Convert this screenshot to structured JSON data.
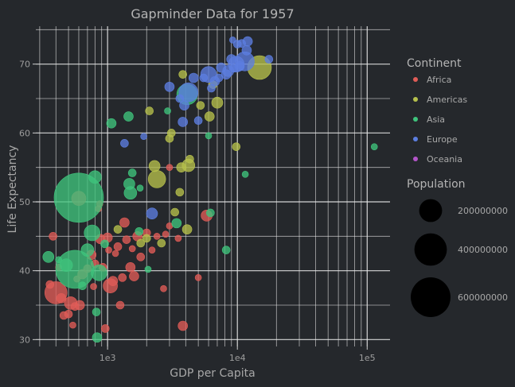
{
  "chart_data": {
    "type": "scatter",
    "title": "Gapminder Data for 1957",
    "xlabel": "GDP per Capita",
    "ylabel": "Life Expectancy",
    "x_scale": "log",
    "xlim": [
      280,
      150000
    ],
    "ylim": [
      29,
      75.5
    ],
    "x_ticks": [
      {
        "value": 1000,
        "label": "1e3"
      },
      {
        "value": 10000,
        "label": "1e4"
      },
      {
        "value": 100000,
        "label": "1e5"
      }
    ],
    "y_ticks": [
      30,
      40,
      50,
      60,
      70
    ],
    "grid": true,
    "legend_position": "right",
    "legend_title": "Continent",
    "size_legend_title": "Population",
    "size_legend": [
      {
        "value": 200000000,
        "label": "200000000"
      },
      {
        "value": 400000000,
        "label": "400000000"
      },
      {
        "value": 600000000,
        "label": "600000000"
      }
    ],
    "colors": {
      "Africa": "#e05c57",
      "Americas": "#b6c04c",
      "Asia": "#3fc47c",
      "Europe": "#5c7ee0",
      "Oceania": "#b355c9"
    },
    "series": [
      {
        "name": "Africa",
        "color": "#e05c57",
        "points": [
          [
            380,
            45.0,
            5
          ],
          [
            420,
            40.5,
            4
          ],
          [
            360,
            38.0,
            5
          ],
          [
            400,
            36.8,
            14
          ],
          [
            440,
            36.0,
            6
          ],
          [
            460,
            33.5,
            5
          ],
          [
            500,
            33.7,
            5
          ],
          [
            520,
            35.3,
            8
          ],
          [
            540,
            32.1,
            4
          ],
          [
            560,
            34.8,
            5
          ],
          [
            610,
            35.0,
            6
          ],
          [
            580,
            38.8,
            4
          ],
          [
            600,
            50.5,
            9
          ],
          [
            640,
            39.5,
            6
          ],
          [
            700,
            40.3,
            5
          ],
          [
            750,
            42.3,
            6
          ],
          [
            780,
            37.7,
            4
          ],
          [
            800,
            41.0,
            5
          ],
          [
            850,
            49.0,
            4
          ],
          [
            870,
            49.7,
            4
          ],
          [
            880,
            44.6,
            6
          ],
          [
            920,
            40.5,
            5
          ],
          [
            960,
            31.6,
            5
          ],
          [
            1000,
            44.8,
            6
          ],
          [
            1020,
            43.0,
            4
          ],
          [
            1050,
            37.8,
            9
          ],
          [
            1100,
            38.5,
            6
          ],
          [
            1150,
            42.5,
            4
          ],
          [
            1200,
            43.5,
            5
          ],
          [
            1250,
            35.0,
            5
          ],
          [
            1300,
            39.0,
            5
          ],
          [
            1350,
            47.0,
            6
          ],
          [
            1400,
            44.5,
            5
          ],
          [
            1500,
            40.5,
            6
          ],
          [
            1550,
            43.2,
            4
          ],
          [
            1600,
            39.2,
            6
          ],
          [
            1700,
            45.0,
            6
          ],
          [
            1800,
            42.0,
            5
          ],
          [
            2000,
            45.5,
            5
          ],
          [
            2200,
            43.0,
            4
          ],
          [
            2400,
            45.0,
            4
          ],
          [
            2700,
            37.4,
            4
          ],
          [
            2800,
            45.3,
            4
          ],
          [
            3000,
            46.5,
            4
          ],
          [
            3500,
            44.7,
            4
          ],
          [
            3800,
            32.0,
            6
          ],
          [
            5000,
            39.0,
            4
          ],
          [
            5800,
            48.0,
            7
          ],
          [
            3000,
            55.0,
            4
          ]
        ]
      },
      {
        "name": "Americas",
        "color": "#b6c04c",
        "points": [
          [
            1200,
            46.0,
            5
          ],
          [
            1800,
            44.0,
            5
          ],
          [
            2000,
            44.7,
            5
          ],
          [
            2100,
            63.2,
            5
          ],
          [
            2300,
            55.2,
            7
          ],
          [
            2400,
            53.3,
            11
          ],
          [
            2600,
            44.0,
            5
          ],
          [
            3000,
            59.2,
            5
          ],
          [
            3100,
            60.0,
            5
          ],
          [
            3300,
            48.5,
            5
          ],
          [
            3600,
            51.4,
            5
          ],
          [
            3700,
            55.0,
            6
          ],
          [
            3800,
            68.5,
            5
          ],
          [
            4100,
            46.0,
            6
          ],
          [
            4200,
            55.3,
            8
          ],
          [
            4300,
            56.2,
            5
          ],
          [
            5200,
            64.0,
            5
          ],
          [
            6100,
            62.4,
            6
          ],
          [
            6500,
            67.0,
            5
          ],
          [
            7000,
            64.4,
            7
          ],
          [
            9800,
            58.0,
            5
          ],
          [
            14800,
            69.5,
            15
          ]
        ]
      },
      {
        "name": "Asia",
        "color": "#3fc47c",
        "points": [
          [
            350,
            42.0,
            7
          ],
          [
            420,
            41.6,
            4
          ],
          [
            480,
            40.8,
            8
          ],
          [
            600,
            50.6,
            31
          ],
          [
            560,
            40.2,
            24
          ],
          [
            640,
            37.8,
            5
          ],
          [
            700,
            43.0,
            8
          ],
          [
            760,
            45.5,
            10
          ],
          [
            800,
            53.6,
            8
          ],
          [
            820,
            34.0,
            5
          ],
          [
            830,
            30.3,
            6
          ],
          [
            860,
            39.7,
            10
          ],
          [
            950,
            43.9,
            5
          ],
          [
            1070,
            61.4,
            6
          ],
          [
            1450,
            62.4,
            6
          ],
          [
            1470,
            52.6,
            7
          ],
          [
            1500,
            51.3,
            8
          ],
          [
            1550,
            54.2,
            5
          ],
          [
            1750,
            45.7,
            5
          ],
          [
            1780,
            52.0,
            4
          ],
          [
            2050,
            40.2,
            4
          ],
          [
            2900,
            63.2,
            4
          ],
          [
            3400,
            46.9,
            6
          ],
          [
            4100,
            65.6,
            13
          ],
          [
            6000,
            59.6,
            4
          ],
          [
            6200,
            48.4,
            5
          ],
          [
            8200,
            43.0,
            5
          ],
          [
            11500,
            54.0,
            4
          ],
          [
            113500,
            58.0,
            4
          ]
        ]
      },
      {
        "name": "Europe",
        "color": "#5c7ee0",
        "points": [
          [
            1350,
            58.5,
            5
          ],
          [
            1900,
            59.5,
            4
          ],
          [
            2200,
            48.3,
            7
          ],
          [
            3000,
            66.7,
            6
          ],
          [
            3600,
            65.0,
            5
          ],
          [
            3800,
            61.6,
            6
          ],
          [
            3900,
            64.0,
            6
          ],
          [
            4200,
            65.9,
            12
          ],
          [
            4600,
            68.0,
            6
          ],
          [
            5000,
            61.8,
            5
          ],
          [
            5500,
            68.0,
            5
          ],
          [
            6000,
            68.5,
            10
          ],
          [
            6300,
            66.5,
            5
          ],
          [
            6700,
            67.5,
            6
          ],
          [
            7200,
            68.0,
            5
          ],
          [
            7500,
            69.5,
            6
          ],
          [
            8200,
            68.5,
            6
          ],
          [
            8500,
            69.0,
            7
          ],
          [
            9000,
            70.7,
            6
          ],
          [
            9300,
            69.4,
            5
          ],
          [
            9800,
            70.0,
            10
          ],
          [
            10000,
            72.9,
            5
          ],
          [
            10400,
            69.7,
            6
          ],
          [
            10800,
            73.0,
            5
          ],
          [
            11400,
            70.4,
            12
          ],
          [
            11800,
            72.0,
            6
          ],
          [
            12000,
            73.3,
            6
          ],
          [
            9200,
            73.5,
            4
          ],
          [
            17500,
            70.7,
            5
          ]
        ]
      },
      {
        "name": "Oceania",
        "color": "#b355c9",
        "points": []
      }
    ]
  }
}
